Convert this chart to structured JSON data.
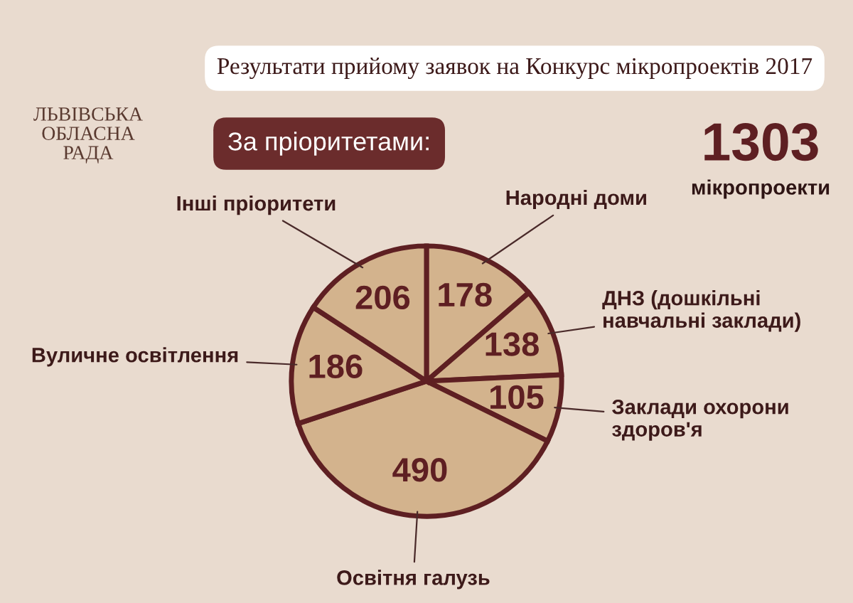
{
  "chart_data": {
    "type": "pie",
    "title": "Результати прийому заявок на Конкурс мікропроектів 2017",
    "subtitle": "За пріоритетами:",
    "categories": [
      "Народні доми",
      "ДНЗ (дошкільні навчальні заклади)",
      "Заклади охорони здоров'я",
      "Освітня галузь",
      "Вуличне освітлення",
      "Інші пріоритети"
    ],
    "values": [
      178,
      138,
      105,
      490,
      186,
      206
    ],
    "colors": [
      "#d3b38d",
      "#d3b38d",
      "#d3b38d",
      "#d3b38d",
      "#d3b38d",
      "#d3b38d"
    ],
    "data_labels": true,
    "annotations": [
      "1303",
      "мікропроекти",
      "ЛЬВІВСЬКА ОБЛАСНА РАДА"
    ]
  }
}
